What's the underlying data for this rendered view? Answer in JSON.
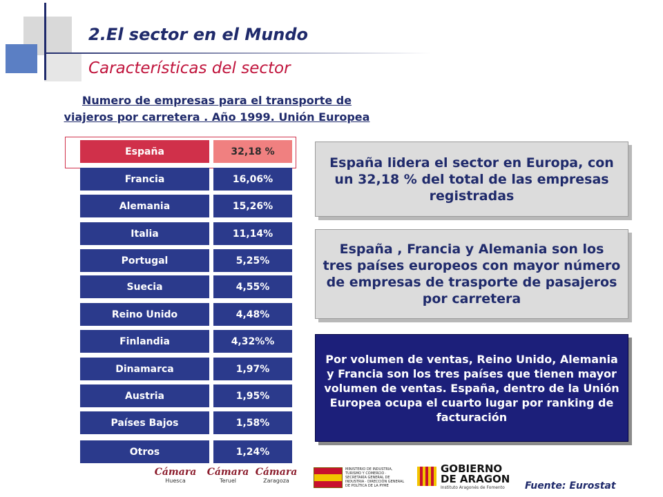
{
  "header": {
    "title": "2.El sector en el Mundo",
    "subtitle": "Características del sector"
  },
  "chart_title_line1": "Numero de empresas para el transporte de",
  "chart_title_line2": "viajeros por carretera . Año 1999. Unión Europea",
  "table": {
    "rows": [
      {
        "country": "España",
        "value": "32,18 %"
      },
      {
        "country": "Francia",
        "value": "16,06%"
      },
      {
        "country": "Alemania",
        "value": "15,26%"
      },
      {
        "country": "Italia",
        "value": "11,14%"
      },
      {
        "country": "Portugal",
        "value": "5,25%"
      },
      {
        "country": "Suecia",
        "value": "4,55%"
      },
      {
        "country": "Reino Unido",
        "value": "4,48%"
      },
      {
        "country": "Finlandia",
        "value": "4,32%%"
      },
      {
        "country": "Dinamarca",
        "value": "1,97%"
      },
      {
        "country": "Austria",
        "value": "1,95%"
      },
      {
        "country": "Países Bajos",
        "value": "1,58%"
      },
      {
        "country": "Otros",
        "value": "1,24%"
      }
    ]
  },
  "boxes": {
    "box1": "España lidera el sector en Europa, con un 32,18 % del total de las empresas registradas",
    "box2": "España , Francia y Alemania son los tres países europeos con mayor número de empresas de trasporte de pasajeros por carretera",
    "box3": "Por volumen de ventas, Reino Unido, Alemania y Francia son los tres países que tienen mayor volumen de ventas. España, dentro de la Unión Europea ocupa el cuarto lugar por ranking de facturación"
  },
  "logos": {
    "camara_huesca": {
      "name": "Cámara",
      "city": "Huesca"
    },
    "camara_teruel": {
      "name": "Cámara",
      "city": "Teruel"
    },
    "camara_zaragoza": {
      "name": "Cámara",
      "city": "Zaragoza"
    },
    "ministry_text": "MINISTERIO DE INDUSTRIA, TURISMO Y COMERCIO · SECRETARÍA GENERAL DE INDUSTRIA · DIRECCIÓN GENERAL DE POLÍTICA DE LA PYME",
    "aragon_line1": "GOBIERNO",
    "aragon_line2": "DE ARAGON",
    "aragon_sub": "Instituto Aragonés de Fomento"
  },
  "source": "Fuente: Eurostat",
  "colors": {
    "navy": "#2b3a8c",
    "highlight_red": "#d0304a",
    "highlight_pink": "#f08080",
    "title_navy": "#1f2a6b",
    "title_red": "#c0143c"
  }
}
